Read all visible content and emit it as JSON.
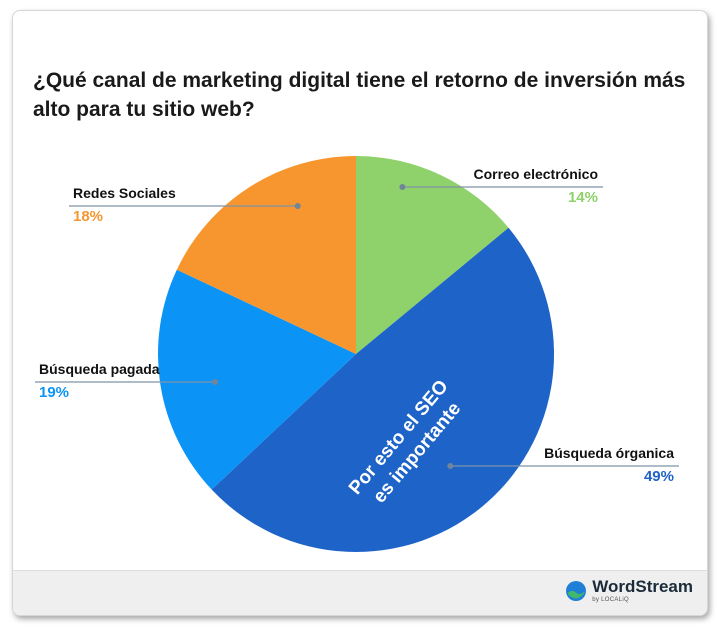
{
  "title": "¿Qué canal de marketing digital tiene el retorno de inversión más alto para tu sitio web?",
  "chart_data": {
    "type": "pie",
    "start_angle_deg": 0,
    "direction": "clockwise",
    "slices": [
      {
        "label": "Correo electrónico",
        "value": 14,
        "display": "14%",
        "color": "#8fd16a",
        "label_side": "right"
      },
      {
        "label": "Búsqueda órganica",
        "value": 49,
        "display": "49%",
        "color": "#1e63c8",
        "label_side": "right"
      },
      {
        "label": "Búsqueda pagada",
        "value": 19,
        "display": "19%",
        "color": "#0b93f6",
        "label_side": "left"
      },
      {
        "label": "Redes Sociales",
        "value": 18,
        "display": "18%",
        "color": "#f7962f",
        "label_side": "left"
      }
    ],
    "annotation": "Por esto el SEO es importante"
  },
  "footer": {
    "logo_name": "WordStream",
    "logo_sub": "by LOCALiQ",
    "logo_colors": {
      "mark_blue": "#1f7fd6",
      "mark_green": "#3fb86b"
    }
  }
}
